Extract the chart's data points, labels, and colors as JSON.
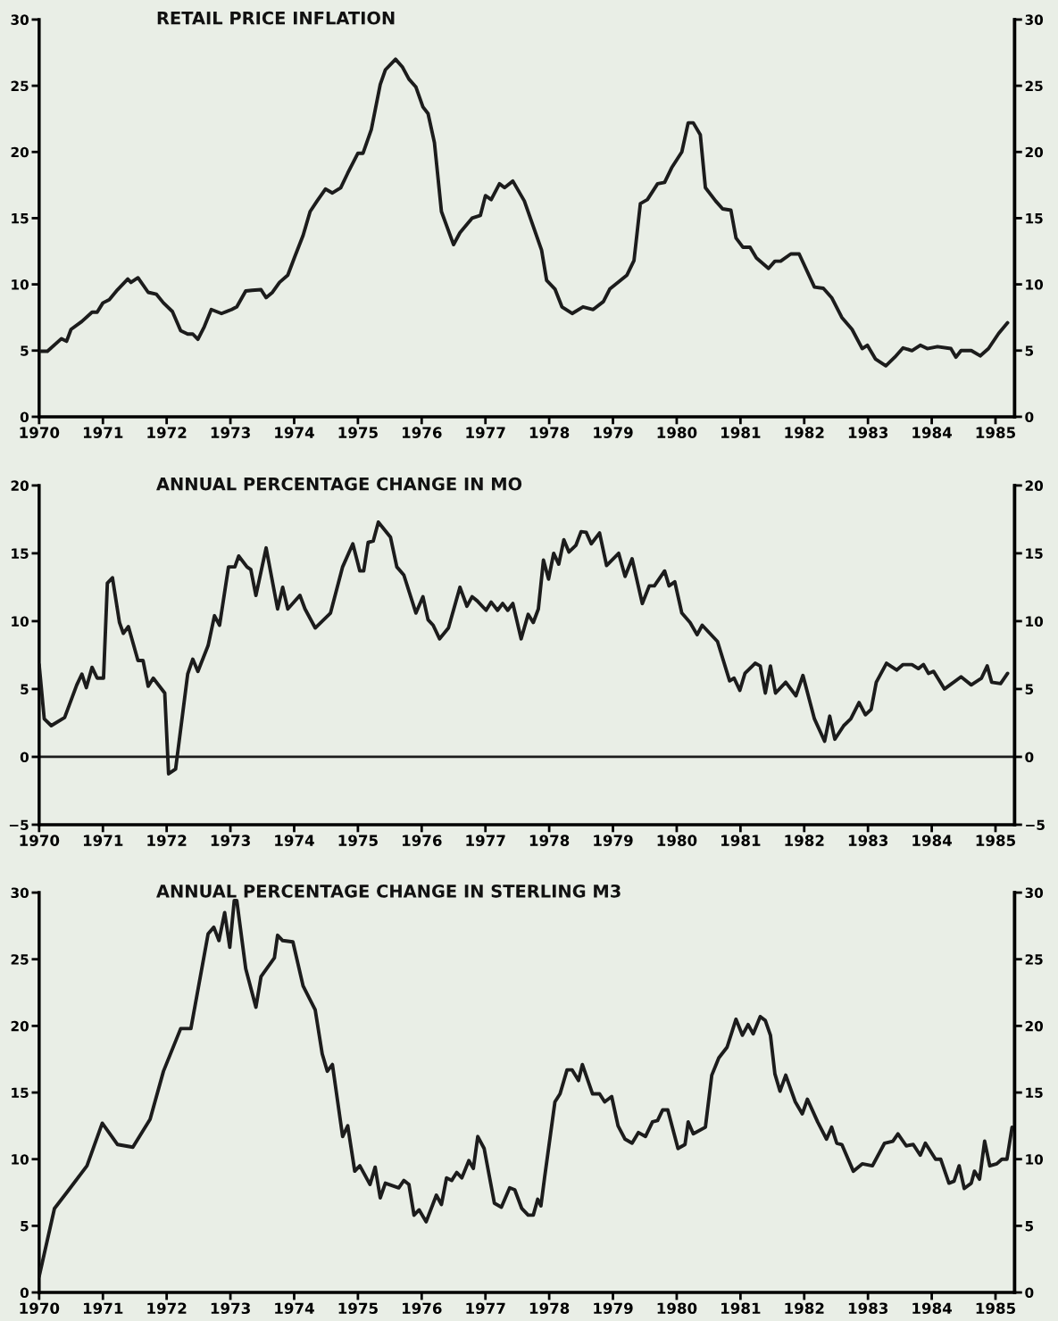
{
  "chart_data": [
    {
      "type": "line",
      "title": "RETAIL PRICE INFLATION",
      "xlim": [
        1970,
        1985.3
      ],
      "xticks": [
        1970,
        1971,
        1972,
        1973,
        1974,
        1975,
        1976,
        1977,
        1978,
        1979,
        1980,
        1981,
        1982,
        1983,
        1984,
        1985
      ],
      "ylim": [
        0,
        30
      ],
      "yticks": [
        0,
        5,
        10,
        15,
        20,
        25,
        30
      ],
      "y2lim": [
        0,
        30
      ],
      "y2ticks": [
        0,
        5,
        10,
        15,
        20,
        25,
        30
      ],
      "series": [
        {
          "color": "#1c1c1c",
          "x": [
            1970.0,
            1970.13,
            1970.35,
            1970.43,
            1970.5,
            1970.67,
            1970.83,
            1970.91,
            1971.0,
            1971.1,
            1971.23,
            1971.39,
            1971.44,
            1971.55,
            1971.71,
            1971.84,
            1971.95,
            1972.09,
            1972.22,
            1972.33,
            1972.41,
            1972.49,
            1972.59,
            1972.7,
            1972.86,
            1973.02,
            1973.1,
            1973.24,
            1973.34,
            1973.48,
            1973.56,
            1973.66,
            1973.77,
            1973.9,
            1974.01,
            1974.14,
            1974.25,
            1974.36,
            1974.49,
            1974.6,
            1974.73,
            1974.84,
            1975.0,
            1975.08,
            1975.21,
            1975.35,
            1975.43,
            1975.59,
            1975.7,
            1975.8,
            1975.91,
            1976.02,
            1976.1,
            1976.2,
            1976.31,
            1976.5,
            1976.6,
            1976.79,
            1976.92,
            1977.0,
            1977.09,
            1977.22,
            1977.3,
            1977.43,
            1977.61,
            1977.88,
            1977.96,
            1978.09,
            1978.2,
            1978.36,
            1978.53,
            1978.69,
            1978.85,
            1978.95,
            1979.22,
            1979.33,
            1979.43,
            1979.54,
            1979.7,
            1979.81,
            1979.92,
            1980.08,
            1980.18,
            1980.26,
            1980.37,
            1980.45,
            1980.61,
            1980.72,
            1980.85,
            1980.93,
            1981.04,
            1981.15,
            1981.25,
            1981.44,
            1981.54,
            1981.63,
            1981.79,
            1981.92,
            1982.16,
            1982.3,
            1982.43,
            1982.59,
            1982.75,
            1982.91,
            1982.99,
            1983.12,
            1983.28,
            1983.42,
            1983.55,
            1983.69,
            1983.82,
            1983.93,
            1984.09,
            1984.3,
            1984.38,
            1984.46,
            1984.62,
            1984.76,
            1984.89,
            1985.05,
            1985.19
          ],
          "values": [
            4.95,
            4.95,
            5.9,
            5.7,
            6.6,
            7.2,
            7.9,
            7.9,
            8.6,
            8.85,
            9.6,
            10.4,
            10.15,
            10.5,
            9.4,
            9.25,
            8.6,
            7.95,
            6.5,
            6.25,
            6.25,
            5.85,
            6.8,
            8.1,
            7.8,
            8.1,
            8.3,
            9.5,
            9.55,
            9.6,
            9.0,
            9.4,
            10.15,
            10.7,
            12.1,
            13.7,
            15.5,
            16.3,
            17.2,
            16.9,
            17.3,
            18.4,
            19.9,
            19.9,
            21.7,
            25.1,
            26.2,
            27.0,
            26.4,
            25.5,
            24.9,
            23.4,
            22.9,
            20.7,
            15.5,
            13.0,
            13.9,
            15.0,
            15.2,
            16.7,
            16.4,
            17.6,
            17.3,
            17.8,
            16.3,
            12.6,
            10.3,
            9.65,
            8.3,
            7.8,
            8.3,
            8.1,
            8.7,
            9.65,
            10.7,
            11.8,
            16.1,
            16.4,
            17.6,
            17.7,
            18.8,
            20.0,
            22.2,
            22.2,
            21.3,
            17.3,
            16.3,
            15.7,
            15.6,
            13.5,
            12.8,
            12.8,
            12.0,
            11.2,
            11.75,
            11.75,
            12.3,
            12.3,
            9.8,
            9.7,
            9.0,
            7.5,
            6.6,
            5.15,
            5.4,
            4.35,
            3.85,
            4.5,
            5.2,
            5.0,
            5.4,
            5.15,
            5.3,
            5.15,
            4.5,
            5.0,
            5.0,
            4.6,
            5.15,
            6.3,
            7.1
          ]
        }
      ]
    },
    {
      "type": "line",
      "title": "ANNUAL PERCENTAGE CHANGE IN MO",
      "xlim": [
        1970,
        1985.3
      ],
      "xticks": [
        1970,
        1971,
        1972,
        1973,
        1974,
        1975,
        1976,
        1977,
        1978,
        1979,
        1980,
        1981,
        1982,
        1983,
        1984,
        1985
      ],
      "ylim": [
        -5,
        20
      ],
      "yticks": [
        {
          "value": -5,
          "label": "−5"
        },
        0,
        5,
        10,
        15,
        20
      ],
      "y2lim": [
        -5,
        20
      ],
      "y2ticks": [
        {
          "value": -5,
          "label": "−5"
        },
        0,
        5,
        10,
        15,
        20
      ],
      "ref_lines": [
        {
          "axis": "y",
          "value": 0,
          "color": "#1c1c1c"
        }
      ],
      "series": [
        {
          "color": "#1c1c1c",
          "x": [
            1970.0,
            1970.08,
            1970.19,
            1970.4,
            1970.59,
            1970.67,
            1970.74,
            1970.83,
            1970.91,
            1971.01,
            1971.07,
            1971.15,
            1971.26,
            1971.32,
            1971.4,
            1971.55,
            1971.63,
            1971.71,
            1971.79,
            1971.97,
            1972.03,
            1972.14,
            1972.33,
            1972.41,
            1972.49,
            1972.65,
            1972.75,
            1972.83,
            1972.97,
            1973.07,
            1973.13,
            1973.26,
            1973.32,
            1973.4,
            1973.56,
            1973.74,
            1973.82,
            1973.9,
            1974.09,
            1974.17,
            1974.33,
            1974.57,
            1974.76,
            1974.92,
            1975.03,
            1975.09,
            1975.16,
            1975.24,
            1975.32,
            1975.51,
            1975.61,
            1975.72,
            1975.91,
            1976.02,
            1976.1,
            1976.18,
            1976.28,
            1976.42,
            1976.6,
            1976.71,
            1976.79,
            1976.87,
            1977.01,
            1977.09,
            1977.19,
            1977.27,
            1977.35,
            1977.43,
            1977.56,
            1977.67,
            1977.75,
            1977.83,
            1977.91,
            1977.99,
            1978.07,
            1978.15,
            1978.23,
            1978.31,
            1978.42,
            1978.5,
            1978.58,
            1978.66,
            1978.79,
            1978.9,
            1979.09,
            1979.19,
            1979.3,
            1979.46,
            1979.57,
            1979.65,
            1979.81,
            1979.88,
            1979.97,
            1980.08,
            1980.21,
            1980.32,
            1980.4,
            1980.64,
            1980.83,
            1980.9,
            1980.99,
            1981.07,
            1981.23,
            1981.31,
            1981.39,
            1981.47,
            1981.55,
            1981.71,
            1981.87,
            1981.98,
            1982.16,
            1982.32,
            1982.4,
            1982.48,
            1982.62,
            1982.73,
            1982.86,
            1982.96,
            1983.05,
            1983.13,
            1983.29,
            1983.45,
            1983.55,
            1983.69,
            1983.79,
            1983.87,
            1983.95,
            1984.03,
            1984.2,
            1984.46,
            1984.62,
            1984.78,
            1984.87,
            1984.94,
            1985.08,
            1985.19
          ],
          "values": [
            6.8,
            2.8,
            2.3,
            2.9,
            5.3,
            6.1,
            5.1,
            6.6,
            5.8,
            5.8,
            12.8,
            13.2,
            9.9,
            9.1,
            9.6,
            7.1,
            7.1,
            5.2,
            5.8,
            4.7,
            -1.25,
            -0.9,
            6.1,
            7.2,
            6.3,
            8.2,
            10.4,
            9.7,
            14.0,
            14.0,
            14.8,
            14.0,
            13.8,
            11.9,
            15.4,
            10.9,
            12.5,
            10.9,
            11.9,
            10.9,
            9.5,
            10.6,
            14.0,
            15.7,
            13.7,
            13.7,
            15.8,
            15.9,
            17.3,
            16.2,
            14.0,
            13.4,
            10.6,
            11.8,
            10.1,
            9.7,
            8.7,
            9.5,
            12.5,
            11.1,
            11.8,
            11.5,
            10.8,
            11.4,
            10.8,
            11.3,
            10.8,
            11.3,
            8.7,
            10.5,
            9.9,
            10.9,
            14.5,
            13.1,
            15.0,
            14.2,
            16.0,
            15.1,
            15.6,
            16.6,
            16.55,
            15.7,
            16.5,
            14.1,
            15.0,
            13.3,
            14.6,
            11.3,
            12.6,
            12.6,
            13.7,
            12.6,
            12.9,
            10.6,
            9.9,
            9.0,
            9.7,
            8.5,
            5.6,
            5.8,
            4.9,
            6.15,
            6.9,
            6.7,
            4.7,
            6.7,
            4.7,
            5.5,
            4.5,
            6.0,
            2.8,
            1.15,
            3.0,
            1.3,
            2.3,
            2.8,
            4.0,
            3.1,
            3.5,
            5.5,
            6.9,
            6.4,
            6.8,
            6.8,
            6.5,
            6.8,
            6.15,
            6.3,
            5.0,
            5.9,
            5.3,
            5.8,
            6.7,
            5.5,
            5.4,
            6.15
          ]
        }
      ]
    },
    {
      "type": "line",
      "title": "ANNUAL PERCENTAGE CHANGE IN STERLING M3",
      "xlim": [
        1970,
        1985.3
      ],
      "xticks": [
        1970,
        1971,
        1972,
        1973,
        1974,
        1975,
        1976,
        1977,
        1978,
        1979,
        1980,
        1981,
        1982,
        1983,
        1984,
        1985
      ],
      "ylim": [
        0,
        30
      ],
      "yticks": [
        0,
        5,
        10,
        15,
        20,
        25,
        30
      ],
      "y2lim": [
        0,
        30
      ],
      "y2ticks": [
        0,
        5,
        10,
        15,
        20,
        25,
        30
      ],
      "series": [
        {
          "color": "#1c1c1c",
          "x": [
            1970.0,
            1970.24,
            1970.45,
            1970.75,
            1970.99,
            1971.23,
            1971.47,
            1971.74,
            1971.95,
            1972.22,
            1972.38,
            1972.65,
            1972.74,
            1972.82,
            1972.91,
            1972.99,
            1973.06,
            1973.1,
            1973.24,
            1973.4,
            1973.48,
            1973.69,
            1973.74,
            1973.82,
            1973.98,
            1974.14,
            1974.33,
            1974.44,
            1974.52,
            1974.6,
            1974.76,
            1974.84,
            1974.95,
            1975.03,
            1975.19,
            1975.27,
            1975.35,
            1975.43,
            1975.64,
            1975.72,
            1975.8,
            1975.88,
            1975.96,
            1976.07,
            1976.23,
            1976.31,
            1976.39,
            1976.47,
            1976.55,
            1976.63,
            1976.74,
            1976.81,
            1976.88,
            1976.98,
            1977.14,
            1977.25,
            1977.38,
            1977.46,
            1977.57,
            1977.67,
            1977.75,
            1977.82,
            1977.87,
            1977.93,
            1978.09,
            1978.17,
            1978.28,
            1978.36,
            1978.46,
            1978.52,
            1978.68,
            1978.79,
            1978.87,
            1978.98,
            1979.08,
            1979.19,
            1979.3,
            1979.4,
            1979.51,
            1979.62,
            1979.7,
            1979.78,
            1979.86,
            1980.02,
            1980.13,
            1980.18,
            1980.26,
            1980.45,
            1980.55,
            1980.66,
            1980.79,
            1980.93,
            1981.03,
            1981.12,
            1981.2,
            1981.31,
            1981.39,
            1981.47,
            1981.54,
            1981.62,
            1981.71,
            1981.86,
            1981.97,
            1982.05,
            1982.21,
            1982.35,
            1982.43,
            1982.51,
            1982.59,
            1982.77,
            1982.91,
            1983.07,
            1983.26,
            1983.39,
            1983.47,
            1983.6,
            1983.71,
            1983.82,
            1983.9,
            1984.06,
            1984.14,
            1984.27,
            1984.35,
            1984.43,
            1984.51,
            1984.62,
            1984.67,
            1984.75,
            1984.83,
            1984.91,
            1985.02,
            1985.1,
            1985.18,
            1985.26
          ],
          "values": [
            1.2,
            6.3,
            7.6,
            9.5,
            12.7,
            11.1,
            10.9,
            13.0,
            16.6,
            19.8,
            19.8,
            26.9,
            27.4,
            26.4,
            28.5,
            25.9,
            29.4,
            29.4,
            24.3,
            21.4,
            23.7,
            25.1,
            26.8,
            26.4,
            26.3,
            23.0,
            21.2,
            17.9,
            16.6,
            17.1,
            11.7,
            12.5,
            9.1,
            9.5,
            8.1,
            9.4,
            7.1,
            8.2,
            7.85,
            8.4,
            8.1,
            5.8,
            6.2,
            5.3,
            7.3,
            6.6,
            8.6,
            8.4,
            9.0,
            8.6,
            9.9,
            9.3,
            11.7,
            10.8,
            6.7,
            6.4,
            7.85,
            7.7,
            6.3,
            5.8,
            5.8,
            7.0,
            6.5,
            8.7,
            14.3,
            14.9,
            16.7,
            16.7,
            15.9,
            17.1,
            14.9,
            14.9,
            14.3,
            14.7,
            12.5,
            11.5,
            11.2,
            12.0,
            11.7,
            12.8,
            12.9,
            13.7,
            13.7,
            10.8,
            11.1,
            12.8,
            11.9,
            12.4,
            16.3,
            17.6,
            18.4,
            20.5,
            19.3,
            20.1,
            19.4,
            20.7,
            20.4,
            19.3,
            16.4,
            15.1,
            16.3,
            14.3,
            13.4,
            14.5,
            12.8,
            11.5,
            12.4,
            11.2,
            11.1,
            9.1,
            9.65,
            9.5,
            11.2,
            11.35,
            11.9,
            11.0,
            11.1,
            10.3,
            11.2,
            10.0,
            10.0,
            8.2,
            8.35,
            9.5,
            7.8,
            8.2,
            9.1,
            8.5,
            11.35,
            9.5,
            9.65,
            10.0,
            10.0,
            12.4
          ]
        }
      ]
    }
  ]
}
